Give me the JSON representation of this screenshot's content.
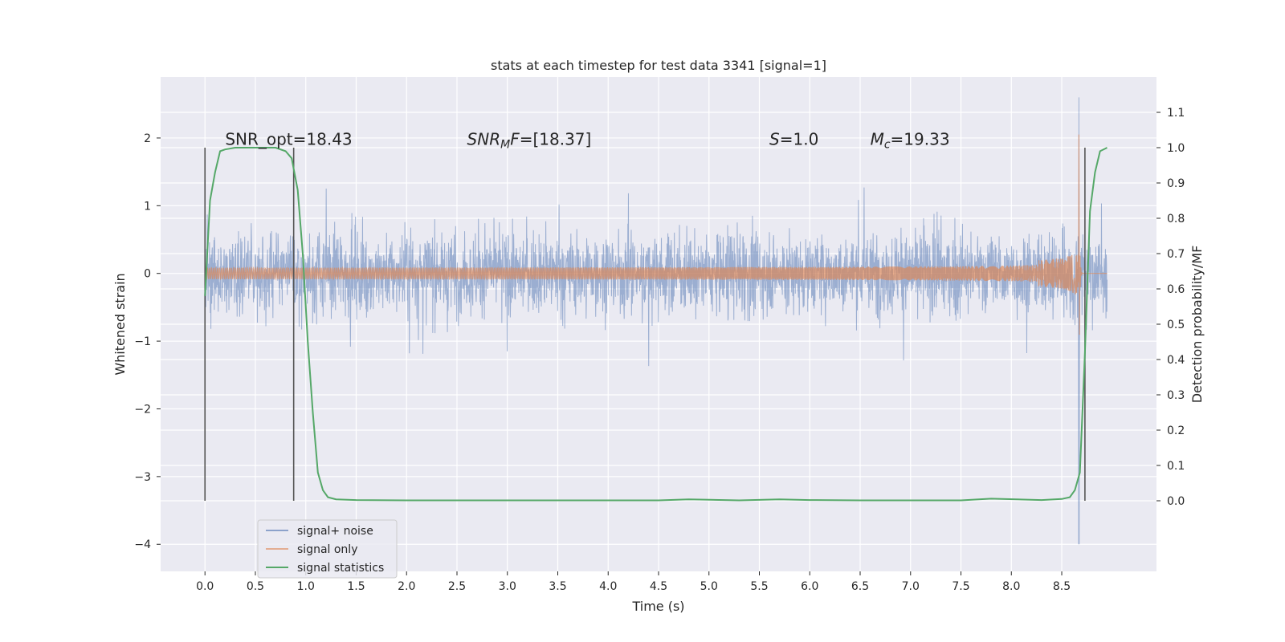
{
  "chart_data": {
    "type": "line",
    "title": "stats at each timestep for test data 3341 [signal=1]",
    "xlabel": "Time (s)",
    "ylabel_left": "Whitened strain",
    "ylabel_right": "Detection probability/MF",
    "xlim": [
      -0.44,
      9.44
    ],
    "ylim_left": [
      -4.4,
      2.9
    ],
    "ylim_right": [
      -0.2,
      1.2
    ],
    "x_ticks": [
      "0.0",
      "0.5",
      "1.0",
      "1.5",
      "2.0",
      "2.5",
      "3.0",
      "3.5",
      "4.0",
      "4.5",
      "5.0",
      "5.5",
      "6.0",
      "6.5",
      "7.0",
      "7.5",
      "8.0",
      "8.5"
    ],
    "y_left_ticks": [
      "2",
      "1",
      "0",
      "−1",
      "−2",
      "−3",
      "−4"
    ],
    "y_right_ticks": [
      "1.1",
      "1.0",
      "0.9",
      "0.8",
      "0.7",
      "0.6",
      "0.5",
      "0.4",
      "0.3",
      "0.2",
      "0.1",
      "0.0"
    ],
    "grid": true,
    "legend_position": "lower-left",
    "annotations": [
      {
        "name": "snr-opt",
        "x": 0.2,
        "y": 1.9,
        "text": "SNR_opt=18.43",
        "parts": [
          {
            "t": "SNR_opt=18.43"
          }
        ]
      },
      {
        "name": "snr-mf",
        "x": 2.6,
        "y": 1.9,
        "text": "SNR_MF=[18.37]",
        "parts": [
          {
            "t": "SNR",
            "i": true
          },
          {
            "t": "M",
            "i": true,
            "sub": true
          },
          {
            "t": "F",
            "i": true
          },
          {
            "t": "=[18.37]"
          }
        ]
      },
      {
        "name": "s-value",
        "x": 5.6,
        "y": 1.9,
        "text": "S=1.0",
        "parts": [
          {
            "t": "S",
            "i": true
          },
          {
            "t": "=1.0"
          }
        ]
      },
      {
        "name": "chirp-mass",
        "x": 6.6,
        "y": 1.9,
        "text": "M_c=19.33",
        "parts": [
          {
            "t": "M",
            "i": true
          },
          {
            "t": "c",
            "i": true,
            "sub": true
          },
          {
            "t": "=19.33"
          }
        ]
      }
    ],
    "vertical_lines": [
      0.0,
      0.88,
      8.73
    ],
    "vertical_line_range_right": [
      0.0,
      1.0
    ],
    "series": [
      {
        "name": "signal+ noise",
        "color": "#4c72b0",
        "axis": "left",
        "description": "noise band roughly ±1.2 with peaks to ±2.2; spike to 2.6 and -4.0 near t=8.67",
        "noise_envelope": 1.25,
        "x_range": [
          0.0,
          8.95
        ]
      },
      {
        "name": "signal only",
        "color": "#dd8452",
        "axis": "left",
        "description": "chirp growing in amplitude, peak about 2.4 / -2.6 near t=8.67, then ringdown",
        "merger_time": 8.67,
        "peak_amplitude": 2.45,
        "x_range": [
          0.0,
          8.95
        ]
      },
      {
        "name": "signal statistics",
        "color": "#55a868",
        "axis": "right",
        "x": [
          0.0,
          0.05,
          0.1,
          0.15,
          0.2,
          0.3,
          0.4,
          0.5,
          0.6,
          0.7,
          0.8,
          0.86,
          0.92,
          0.97,
          1.02,
          1.07,
          1.12,
          1.17,
          1.22,
          1.3,
          1.5,
          2.0,
          3.0,
          3.5,
          4.0,
          4.5,
          4.8,
          5.3,
          5.7,
          6.0,
          6.5,
          7.0,
          7.5,
          7.8,
          8.3,
          8.5,
          8.58,
          8.63,
          8.68,
          8.73,
          8.78,
          8.83,
          8.88,
          8.95
        ],
        "values": [
          0.58,
          0.85,
          0.93,
          0.99,
          0.995,
          1.0,
          1.0,
          1.0,
          1.0,
          1.0,
          0.99,
          0.97,
          0.88,
          0.7,
          0.45,
          0.25,
          0.08,
          0.03,
          0.01,
          0.004,
          0.002,
          0.001,
          0.001,
          0.001,
          0.001,
          0.001,
          0.004,
          0.001,
          0.004,
          0.002,
          0.001,
          0.001,
          0.001,
          0.006,
          0.002,
          0.005,
          0.01,
          0.03,
          0.08,
          0.42,
          0.82,
          0.93,
          0.99,
          1.0
        ]
      }
    ]
  }
}
